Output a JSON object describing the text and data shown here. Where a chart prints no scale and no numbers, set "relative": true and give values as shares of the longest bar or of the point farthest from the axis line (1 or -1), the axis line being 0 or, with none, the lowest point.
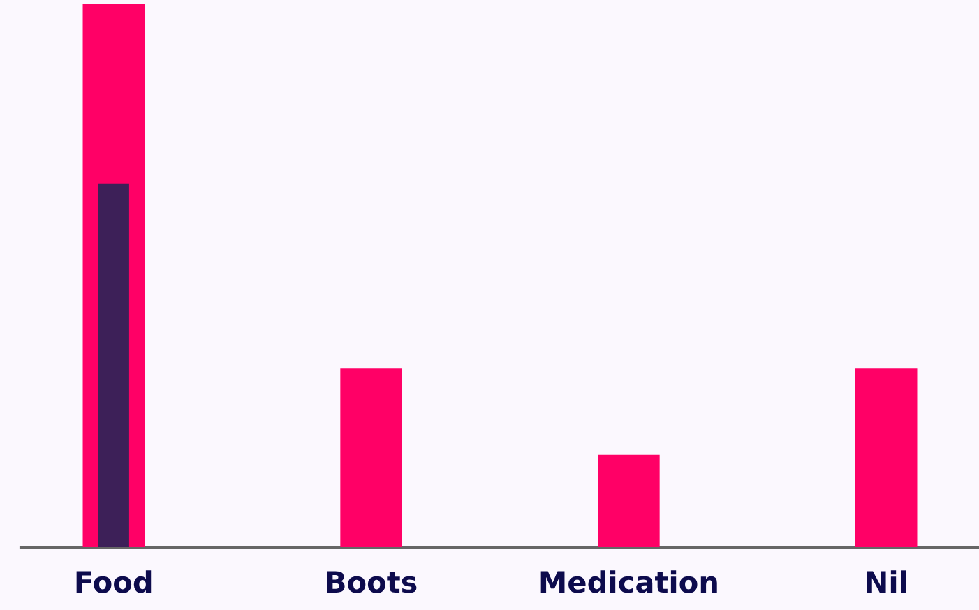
{
  "chart_data": {
    "type": "bar",
    "relative": true,
    "grid": false,
    "tick_labels": "x",
    "categories": [
      "Food",
      "Boots",
      "Medication",
      "Nil"
    ],
    "series": [
      {
        "color": "#ff0066",
        "values": [
          1,
          0.33,
          0.17,
          0.33
        ]
      },
      {
        "color": "#3d2058",
        "values": [
          0.67,
          null,
          null,
          null
        ]
      }
    ]
  }
}
